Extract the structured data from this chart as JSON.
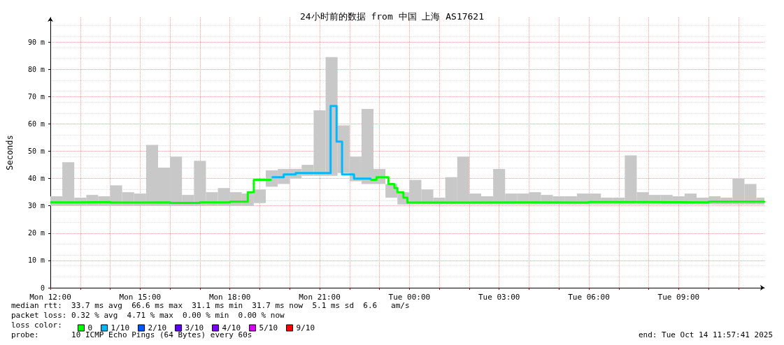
{
  "chart_data": {
    "type": "step",
    "title": "24小时前的数据 from 中国 上海 AS17621",
    "ylabel": "Seconds",
    "legend_title": "loss color:",
    "xlim": [
      "2025-10-13T12:00",
      "2025-10-14T11:52"
    ],
    "xticks": [
      {
        "value": "2025-10-13T12:00",
        "label": "Mon 12:00"
      },
      {
        "value": "2025-10-13T13:00",
        "label": null
      },
      {
        "value": "2025-10-13T14:00",
        "label": null
      },
      {
        "value": "2025-10-13T15:00",
        "label": "Mon 15:00"
      },
      {
        "value": "2025-10-13T16:00",
        "label": null
      },
      {
        "value": "2025-10-13T17:00",
        "label": null
      },
      {
        "value": "2025-10-13T18:00",
        "label": "Mon 18:00"
      },
      {
        "value": "2025-10-13T19:00",
        "label": null
      },
      {
        "value": "2025-10-13T20:00",
        "label": null
      },
      {
        "value": "2025-10-13T21:00",
        "label": "Mon 21:00"
      },
      {
        "value": "2025-10-13T22:00",
        "label": null
      },
      {
        "value": "2025-10-13T23:00",
        "label": null
      },
      {
        "value": "2025-10-14T00:00",
        "label": "Tue 00:00"
      },
      {
        "value": "2025-10-14T01:00",
        "label": null
      },
      {
        "value": "2025-10-14T02:00",
        "label": null
      },
      {
        "value": "2025-10-14T03:00",
        "label": "Tue 03:00"
      },
      {
        "value": "2025-10-14T04:00",
        "label": null
      },
      {
        "value": "2025-10-14T05:00",
        "label": null
      },
      {
        "value": "2025-10-14T06:00",
        "label": "Tue 06:00"
      },
      {
        "value": "2025-10-14T07:00",
        "label": null
      },
      {
        "value": "2025-10-14T08:00",
        "label": null
      },
      {
        "value": "2025-10-14T09:00",
        "label": "Tue 09:00"
      },
      {
        "value": "2025-10-14T10:00",
        "label": null
      },
      {
        "value": "2025-10-14T11:00",
        "label": null
      }
    ],
    "ylim": [
      0,
      99
    ],
    "yticks": [
      0,
      {
        "value": 10,
        "label": "10 m"
      },
      {
        "value": 20,
        "label": "20 m"
      },
      {
        "value": 30,
        "label": "30 m"
      },
      {
        "value": 40,
        "label": "40 m"
      },
      {
        "value": 50,
        "label": "50 m"
      },
      {
        "value": 60,
        "label": "60 m"
      },
      {
        "value": 70,
        "label": "70 m"
      },
      {
        "value": 80,
        "label": "80 m"
      },
      {
        "value": 90,
        "label": "90 m"
      }
    ],
    "grid": true,
    "legend": "bottom left",
    "series": [
      {
        "type": "bar",
        "color": "#c8c8c8",
        "x": [
          "2025-10-13T12:12",
          "2025-10-13T12:36",
          "2025-10-13T13:00",
          "2025-10-13T13:24",
          "2025-10-13T13:48",
          "2025-10-13T14:12",
          "2025-10-13T14:36",
          "2025-10-13T15:00",
          "2025-10-13T15:24",
          "2025-10-13T15:48",
          "2025-10-13T16:12",
          "2025-10-13T16:36",
          "2025-10-13T17:00",
          "2025-10-13T17:24",
          "2025-10-13T17:48",
          "2025-10-13T18:12",
          "2025-10-13T18:36",
          "2025-10-13T19:00",
          "2025-10-13T19:24",
          "2025-10-13T19:48",
          "2025-10-13T20:12",
          "2025-10-13T20:36",
          "2025-10-13T21:00",
          "2025-10-13T21:24",
          "2025-10-13T21:48",
          "2025-10-13T22:12",
          "2025-10-13T22:36",
          "2025-10-13T23:00",
          "2025-10-13T23:24",
          "2025-10-13T23:48",
          "2025-10-14T00:12",
          "2025-10-14T00:36",
          "2025-10-14T01:00",
          "2025-10-14T01:24",
          "2025-10-14T01:48",
          "2025-10-14T02:12",
          "2025-10-14T02:36",
          "2025-10-14T03:00",
          "2025-10-14T03:24",
          "2025-10-14T03:48",
          "2025-10-14T04:12",
          "2025-10-14T04:36",
          "2025-10-14T05:00",
          "2025-10-14T05:24",
          "2025-10-14T05:48",
          "2025-10-14T06:12",
          "2025-10-14T06:36",
          "2025-10-14T07:00",
          "2025-10-14T07:24",
          "2025-10-14T07:48",
          "2025-10-14T08:12",
          "2025-10-14T08:36",
          "2025-10-14T09:00",
          "2025-10-14T09:24",
          "2025-10-14T09:48",
          "2025-10-14T10:12",
          "2025-10-14T10:36",
          "2025-10-14T11:00",
          "2025-10-14T11:24",
          "2025-10-14T11:48"
        ],
        "base": [
          30,
          30,
          30,
          30,
          30,
          30,
          30,
          30,
          30,
          30,
          30,
          30,
          30,
          30,
          30,
          30,
          30,
          31,
          37,
          38,
          40,
          41,
          41,
          41,
          42,
          39,
          38,
          38,
          33,
          30.5,
          30.5,
          30.5,
          30.5,
          30.5,
          30.5,
          30.5,
          30.5,
          30.5,
          30.5,
          30.5,
          30.5,
          30.5,
          30.5,
          30.5,
          30.5,
          30.5,
          30.5,
          30.5,
          30.5,
          30.5,
          30.5,
          30.5,
          30.5,
          30.5,
          30.5,
          30.5,
          30.5,
          30.5,
          30.5,
          30.5
        ],
        "values": [
          3.5,
          16,
          3,
          4,
          3.5,
          7.5,
          5,
          4.5,
          22.3,
          14,
          18,
          4,
          16.5,
          5,
          6.5,
          5,
          4.5,
          5,
          6,
          5.5,
          3.5,
          4,
          24,
          43.5,
          17.5,
          9,
          27.5,
          5.5,
          5,
          4.5,
          9,
          5.5,
          2.5,
          10,
          17.5,
          4,
          3,
          13,
          4,
          4,
          4.5,
          3.5,
          3,
          3,
          4,
          4,
          2.5,
          2.5,
          18,
          4.5,
          3.5,
          3.5,
          3,
          4,
          2.5,
          3,
          2.5,
          9.5,
          7.5,
          2.5
        ]
      },
      {
        "name": "0",
        "color": "#00ff00",
        "x": [
          "2025-10-13T12:00",
          "2025-10-13T13:00",
          "2025-10-13T14:00",
          "2025-10-13T15:00",
          "2025-10-13T16:00",
          "2025-10-13T17:00",
          "2025-10-13T18:00",
          "2025-10-13T18:36",
          "2025-10-13T18:48",
          "2025-10-13T19:24",
          "2025-10-13T22:42",
          "2025-10-13T22:54",
          "2025-10-13T23:18",
          "2025-10-13T23:30",
          "2025-10-13T23:36",
          "2025-10-13T23:48",
          "2025-10-13T23:56",
          "2025-10-14T02:00",
          "2025-10-14T04:00",
          "2025-10-14T06:00",
          "2025-10-14T08:00",
          "2025-10-14T10:00",
          "2025-10-14T11:52"
        ],
        "values": [
          31.3,
          31.4,
          31.2,
          31.3,
          31.1,
          31.3,
          31.5,
          35,
          39.5,
          null,
          39.5,
          40.5,
          38,
          36.5,
          35,
          33,
          31.2,
          31.3,
          31.2,
          31.4,
          31.3,
          31.5,
          31.7
        ]
      },
      {
        "name": "1/10",
        "color": "#00b8ff",
        "x": [
          "2025-10-13T19:24",
          "2025-10-13T19:48",
          "2025-10-13T20:12",
          "2025-10-13T21:22",
          "2025-10-13T21:34",
          "2025-10-13T21:45",
          "2025-10-13T22:09",
          "2025-10-13T22:42"
        ],
        "values": [
          40.5,
          41.5,
          42,
          66.6,
          53.5,
          41.5,
          40,
          39.5
        ]
      },
      {
        "name": "2/10",
        "color": "#0059ff"
      },
      {
        "name": "3/10",
        "color": "#5e00ff"
      },
      {
        "name": "4/10",
        "color": "#7e00ff"
      },
      {
        "name": "5/10",
        "color": "#dd00ff"
      },
      {
        "name": "9/10",
        "color": "#ff0000"
      }
    ],
    "annotations": [
      "median rtt:  33.7 ms avg  66.6 ms max  31.1 ms min  31.7 ms now  5.1 ms sd  6.6   am/s",
      "packet loss: 0.32 % avg  4.71 % max  0.00 % min  0.00 % now",
      "probe:       10 ICMP Echo Pings (64 Bytes) every 60s",
      "end: Tue Oct 14 11:57:41 2025"
    ]
  }
}
